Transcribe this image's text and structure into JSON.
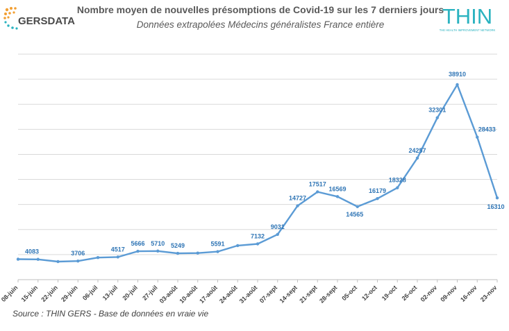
{
  "header": {
    "title": "Nombre moyen de nouvelles présomptions de Covid-19 sur les 7 derniers jours",
    "subtitle": "Données extrapolées Médecins généralistes France entière"
  },
  "logos": {
    "left_text": "GERSDATA",
    "right_text": "THIN",
    "right_tagline": "THE HEALTH IMPROVEMENT NETWORK",
    "left_color": "#4a4a4a",
    "right_color": "#2bb3c0",
    "dot_colors": [
      "#f29f32",
      "#2bb3c0"
    ]
  },
  "footer": {
    "source": "Source : THIN GERS - Base de données en vraie vie"
  },
  "chart_data": {
    "type": "line",
    "title": "",
    "xlabel": "",
    "ylabel": "",
    "ylim": [
      0,
      45000
    ],
    "grid": true,
    "legend": "none",
    "x": [
      "08-juin",
      "15-juin",
      "22-juin",
      "29-juin",
      "06-juil",
      "13-juil",
      "20-juil",
      "27-juil",
      "03-août",
      "10-août",
      "17-août",
      "24-août",
      "31-août",
      "07-sept",
      "14-sept",
      "21-sept",
      "28-sept",
      "05-oct",
      "12-oct",
      "19-oct",
      "26-oct",
      "02-nov",
      "09-nov",
      "16-nov",
      "23-nov"
    ],
    "series": [
      {
        "color": "#5b9bd5",
        "values": [
          {
            "x": "08-juin",
            "y": 4083
          },
          {
            "x": "15-juin",
            "y": 4050
          },
          {
            "x": "22-juin",
            "y": 3600
          },
          {
            "x": "29-juin",
            "y": 3706
          },
          {
            "x": "06-juil",
            "y": 4400
          },
          {
            "x": "13-juil",
            "y": 4517
          },
          {
            "x": "20-juil",
            "y": 5666
          },
          {
            "x": "27-juil",
            "y": 5710
          },
          {
            "x": "03-août",
            "y": 5249
          },
          {
            "x": "10-août",
            "y": 5300
          },
          {
            "x": "17-août",
            "y": 5591
          },
          {
            "x": "24-août",
            "y": 6800
          },
          {
            "x": "31-août",
            "y": 7132
          },
          {
            "x": "07-sept",
            "y": 9031
          },
          {
            "x": "14-sept",
            "y": 14727
          },
          {
            "x": "21-sept",
            "y": 17517
          },
          {
            "x": "28-sept",
            "y": 16569
          },
          {
            "x": "05-oct",
            "y": 14565
          },
          {
            "x": "12-oct",
            "y": 16179
          },
          {
            "x": "19-oct",
            "y": 18328
          },
          {
            "x": "26-oct",
            "y": 24257
          },
          {
            "x": "02-nov",
            "y": 32301
          },
          {
            "x": "09-nov",
            "y": 38910
          },
          {
            "x": "16-nov",
            "y": 28433
          },
          {
            "x": "23-nov",
            "y": 16310
          }
        ]
      }
    ],
    "data_labels": [
      {
        "x": "08-juin",
        "y": 4083,
        "text": "4083"
      },
      {
        "x": "29-juin",
        "y": 3706,
        "text": "3706"
      },
      {
        "x": "13-juil",
        "y": 4517,
        "text": "4517"
      },
      {
        "x": "20-juil",
        "y": 5666,
        "text": "5666"
      },
      {
        "x": "27-juil",
        "y": 5710,
        "text": "5710"
      },
      {
        "x": "03-août",
        "y": 5249,
        "text": "5249"
      },
      {
        "x": "17-août",
        "y": 5591,
        "text": "5591"
      },
      {
        "x": "31-août",
        "y": 7132,
        "text": "7132"
      },
      {
        "x": "07-sept",
        "y": 9031,
        "text": "9031"
      },
      {
        "x": "14-sept",
        "y": 14727,
        "text": "14727"
      },
      {
        "x": "21-sept",
        "y": 17517,
        "text": "17517"
      },
      {
        "x": "28-sept",
        "y": 16569,
        "text": "16569"
      },
      {
        "x": "05-oct",
        "y": 14565,
        "text": "14565"
      },
      {
        "x": "12-oct",
        "y": 16179,
        "text": "16179"
      },
      {
        "x": "19-oct",
        "y": 18328,
        "text": "18328"
      },
      {
        "x": "26-oct",
        "y": 24257,
        "text": "24257"
      },
      {
        "x": "02-nov",
        "y": 32301,
        "text": "32301"
      },
      {
        "x": "09-nov",
        "y": 38910,
        "text": "38910"
      },
      {
        "x": "16-nov",
        "y": 28433,
        "text": "28433"
      },
      {
        "x": "23-nov",
        "y": 16310,
        "text": "16310"
      }
    ]
  }
}
